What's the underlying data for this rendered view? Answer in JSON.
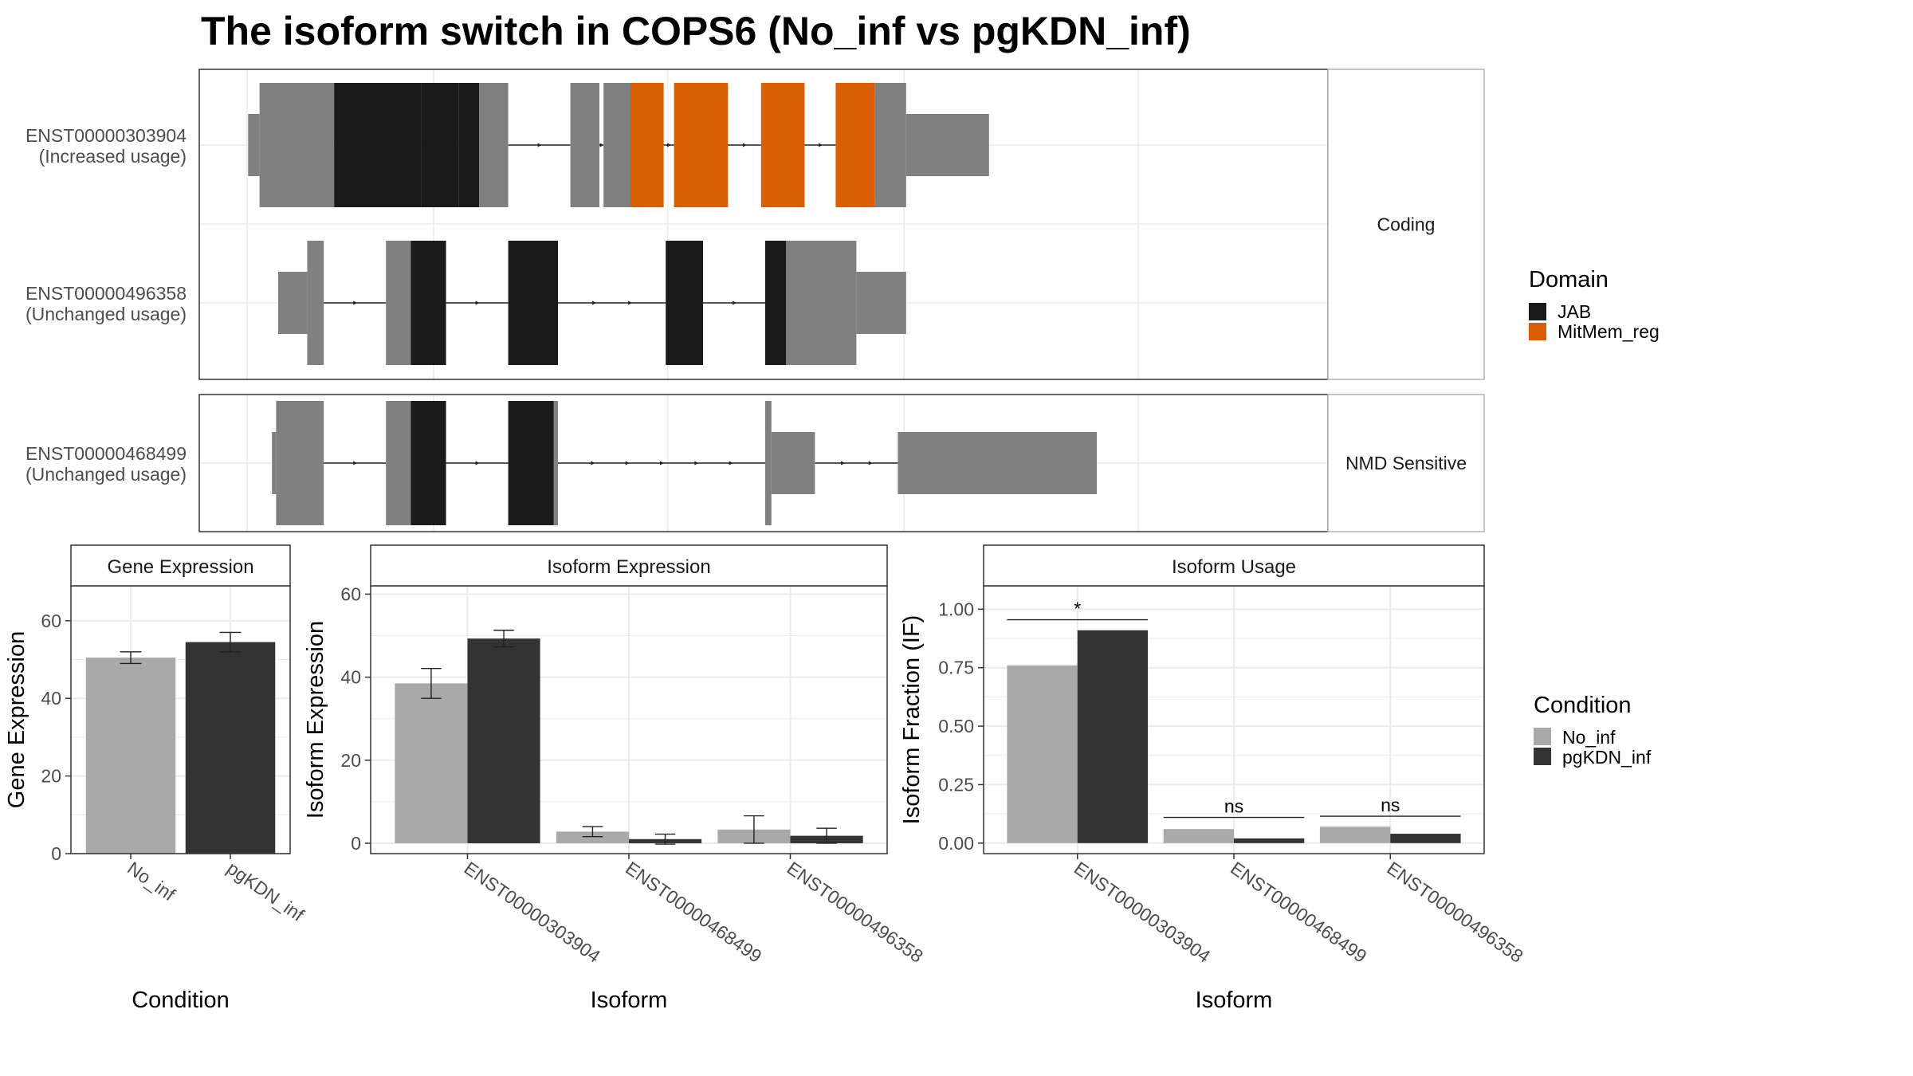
{
  "title": "The isoform switch in COPS6 (No_inf vs pgKDN_inf)",
  "colors": {
    "utr": "#808080",
    "cds": "#808080",
    "jab": "#1a1a1a",
    "mitmem": "#d95f02",
    "no_inf": "#a9a9a9",
    "pgkdn": "#333333",
    "panel_border": "#333333",
    "strip_border": "#b3b3b3",
    "grid": "#ebebeb",
    "text": "#000000",
    "axis_text": "#4d4d4d"
  },
  "structure": {
    "facets": [
      {
        "label": "Coding",
        "isoforms": [
          {
            "id": "ENST00000303904",
            "usage": "(Increased usage)",
            "exons": [
              {
                "start": 0.5,
                "end": 6.0,
                "type": "utr",
                "domain": ""
              },
              {
                "start": 6.0,
                "end": 30.0,
                "type": "cds",
                "domain": ""
              },
              {
                "start": 30.0,
                "end": 42.0,
                "type": "cds",
                "domain": ""
              },
              {
                "start": 42.0,
                "end": 60.0,
                "type": "cds",
                "domain": "JAB"
              },
              {
                "start": 60.0,
                "end": 84.0,
                "type": "cds",
                "domain": "JAB"
              },
              {
                "start": 84.0,
                "end": 102.0,
                "type": "cds",
                "domain": "JAB"
              },
              {
                "start": 102.0,
                "end": 112.0,
                "type": "cds",
                "domain": "JAB"
              },
              {
                "start": 112.0,
                "end": 126.0,
                "type": "cds",
                "domain": ""
              },
              {
                "start": 156.0,
                "end": 170.0,
                "type": "cds",
                "domain": ""
              },
              {
                "start": 172.0,
                "end": 185.0,
                "type": "cds",
                "domain": ""
              },
              {
                "start": 185.0,
                "end": 201.0,
                "type": "cds",
                "domain": "MitMem_reg"
              },
              {
                "start": 206.0,
                "end": 232.0,
                "type": "cds",
                "domain": "MitMem_reg"
              },
              {
                "start": 248.0,
                "end": 269.0,
                "type": "cds",
                "domain": "MitMem_reg"
              },
              {
                "start": 284.0,
                "end": 303.0,
                "type": "cds",
                "domain": "MitMem_reg"
              },
              {
                "start": 303.0,
                "end": 318.0,
                "type": "cds",
                "domain": ""
              },
              {
                "start": 318.0,
                "end": 358.0,
                "type": "utr",
                "domain": ""
              }
            ],
            "introns": [
              [
                30.0,
                42.0
              ],
              [
                60.0,
                84.0
              ],
              [
                102.0,
                112.0
              ],
              [
                126.0,
                156.0
              ],
              [
                170.0,
                172.0
              ],
              [
                201.0,
                206.0
              ],
              [
                232.0,
                248.0
              ],
              [
                269.0,
                284.0
              ]
            ]
          },
          {
            "id": "ENST00000496358",
            "usage": "(Unchanged usage)",
            "exons": [
              {
                "start": 15.0,
                "end": 29.0,
                "type": "utr",
                "domain": ""
              },
              {
                "start": 29.0,
                "end": 37.0,
                "type": "cds",
                "domain": ""
              },
              {
                "start": 67.0,
                "end": 79.0,
                "type": "cds",
                "domain": ""
              },
              {
                "start": 79.0,
                "end": 96.0,
                "type": "cds",
                "domain": "JAB"
              },
              {
                "start": 126.0,
                "end": 150.0,
                "type": "cds",
                "domain": "JAB"
              },
              {
                "start": 202.0,
                "end": 220.0,
                "type": "cds",
                "domain": "JAB"
              },
              {
                "start": 250.0,
                "end": 260.0,
                "type": "cds",
                "domain": "JAB"
              },
              {
                "start": 260.0,
                "end": 294.0,
                "type": "cds",
                "domain": ""
              },
              {
                "start": 294.0,
                "end": 318.0,
                "type": "utr",
                "domain": ""
              }
            ],
            "introns": [
              [
                37.0,
                67.0
              ],
              [
                96.0,
                126.0
              ],
              [
                150.0,
                202.0
              ],
              [
                220.0,
                250.0
              ]
            ]
          }
        ]
      },
      {
        "label": "NMD Sensitive",
        "isoforms": [
          {
            "id": "ENST00000468499",
            "usage": "(Unchanged usage)",
            "exons": [
              {
                "start": 12.0,
                "end": 14.0,
                "type": "utr",
                "domain": ""
              },
              {
                "start": 14.0,
                "end": 37.0,
                "type": "cds",
                "domain": ""
              },
              {
                "start": 67.0,
                "end": 79.0,
                "type": "cds",
                "domain": ""
              },
              {
                "start": 79.0,
                "end": 96.0,
                "type": "cds",
                "domain": "JAB"
              },
              {
                "start": 126.0,
                "end": 148.0,
                "type": "cds",
                "domain": "JAB"
              },
              {
                "start": 148.0,
                "end": 150.0,
                "type": "cds",
                "domain": ""
              },
              {
                "start": 250.0,
                "end": 253.0,
                "type": "cds",
                "domain": ""
              },
              {
                "start": 253.0,
                "end": 274.0,
                "type": "utr",
                "domain": ""
              },
              {
                "start": 314.0,
                "end": 410.0,
                "type": "utr",
                "domain": ""
              }
            ],
            "introns": [
              [
                37.0,
                67.0
              ],
              [
                96.0,
                126.0
              ],
              [
                150.0,
                250.0
              ],
              [
                274.0,
                314.0
              ]
            ]
          }
        ]
      }
    ]
  },
  "legend_domain": {
    "title": "Domain",
    "items": [
      {
        "label": "JAB",
        "color": "#1a1a1a"
      },
      {
        "label": "MitMem_reg",
        "color": "#d95f02"
      }
    ]
  },
  "legend_condition": {
    "title": "Condition",
    "items": [
      {
        "label": "No_inf",
        "color": "#a9a9a9"
      },
      {
        "label": "pgKDN_inf",
        "color": "#333333"
      }
    ]
  },
  "chart_data": [
    {
      "type": "bar",
      "title": "Gene Expression",
      "xlabel": "Condition",
      "ylabel": "Gene Expression",
      "categories": [
        "No_inf",
        "pgKDN_inf"
      ],
      "values": [
        50.5,
        54.5
      ],
      "error": [
        1.5,
        2.5
      ],
      "ylim": [
        0,
        69
      ],
      "yticks": [
        0,
        20,
        40,
        60
      ],
      "grid": true
    },
    {
      "type": "bar",
      "title": "Isoform Expression",
      "xlabel": "Isoform",
      "ylabel": "Isoform Expression",
      "categories": [
        "ENST00000303904",
        "ENST00000468499",
        "ENST00000496358"
      ],
      "series": [
        {
          "name": "No_inf",
          "values": [
            38.5,
            2.8,
            3.3
          ],
          "error": [
            3.6,
            1.2,
            3.3
          ]
        },
        {
          "name": "pgKDN_inf",
          "values": [
            49.3,
            1.0,
            1.8
          ],
          "error": [
            2.0,
            1.2,
            1.8
          ]
        }
      ],
      "ylim": [
        -2.5,
        62
      ],
      "yticks": [
        0,
        20,
        40,
        60
      ],
      "grid": true
    },
    {
      "type": "bar",
      "title": "Isoform Usage",
      "xlabel": "Isoform",
      "ylabel": "Isoform Fraction (IF)",
      "categories": [
        "ENST00000303904",
        "ENST00000468499",
        "ENST00000496358"
      ],
      "series": [
        {
          "name": "No_inf",
          "values": [
            0.76,
            0.06,
            0.07
          ]
        },
        {
          "name": "pgKDN_inf",
          "values": [
            0.91,
            0.02,
            0.04
          ]
        }
      ],
      "significance": [
        "*",
        "ns",
        "ns"
      ],
      "significance_y": [
        0.955,
        0.11,
        0.115
      ],
      "ylim": [
        -0.045,
        1.1
      ],
      "yticks": [
        0.0,
        0.25,
        0.5,
        0.75,
        1.0
      ],
      "ytick_labels": [
        "0.00",
        "0.25",
        "0.50",
        "0.75",
        "1.00"
      ],
      "grid": true
    }
  ]
}
